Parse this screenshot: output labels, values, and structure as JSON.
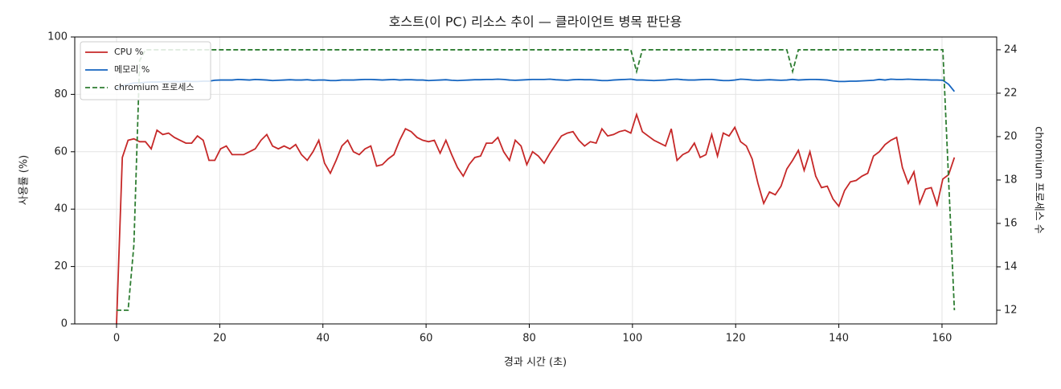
{
  "chart_data": {
    "type": "line",
    "title": "호스트(이 PC) 리소스 추이 — 클라이언트 병목 판단용",
    "xlabel": "경과 시간 (초)",
    "ylabel": "사용률 (%)",
    "y2label": "chromium 프로세스 수",
    "x": [
      0,
      1.12,
      2.24,
      3.36,
      4.48,
      5.6,
      6.72,
      7.84,
      8.96,
      10.08,
      11.2,
      12.32,
      13.44,
      14.56,
      15.68,
      16.8,
      17.92,
      19.04,
      20.16,
      21.28,
      22.4,
      23.52,
      24.64,
      25.76,
      26.88,
      28,
      29.12,
      30.24,
      31.36,
      32.48,
      33.6,
      34.72,
      35.84,
      36.96,
      38.08,
      39.2,
      40.32,
      41.44,
      42.56,
      43.68,
      44.8,
      45.92,
      47.04,
      48.16,
      49.28,
      50.4,
      51.52,
      52.64,
      53.76,
      54.88,
      56,
      57.12,
      58.24,
      59.36,
      60.48,
      61.6,
      62.72,
      63.84,
      64.96,
      66.08,
      67.2,
      68.32,
      69.44,
      70.56,
      71.68,
      72.8,
      73.92,
      75.04,
      76.16,
      77.28,
      78.4,
      79.52,
      80.64,
      81.76,
      82.88,
      84,
      85.12,
      86.24,
      87.36,
      88.48,
      89.6,
      90.72,
      91.84,
      92.96,
      94.08,
      95.2,
      96.32,
      97.44,
      98.56,
      99.68,
      100.8,
      101.92,
      103.04,
      104.16,
      105.28,
      106.4,
      107.52,
      108.64,
      109.76,
      110.88,
      112,
      113.12,
      114.24,
      115.36,
      116.48,
      117.6,
      118.72,
      119.84,
      120.96,
      122.08,
      123.2,
      124.32,
      125.44,
      126.56,
      127.68,
      128.8,
      129.92,
      131.04,
      132.16,
      133.28,
      134.4,
      135.52,
      136.64,
      137.76,
      138.88,
      140,
      141.12,
      142.24,
      143.36,
      144.48,
      145.6,
      146.72,
      147.84,
      148.96,
      150.08,
      151.2,
      152.32,
      153.44,
      154.56,
      155.68,
      156.8,
      157.92,
      159.04,
      160.16,
      161.28,
      162.4
    ],
    "series": [
      {
        "name": "CPU %",
        "color": "#c62828",
        "linestyle": "solid",
        "values": [
          0,
          58,
          64,
          64.5,
          63.5,
          63.5,
          61,
          67.5,
          66,
          66.5,
          65,
          64,
          63,
          63,
          65.5,
          64,
          57,
          57,
          61,
          62,
          59,
          59,
          59,
          60,
          61,
          64,
          66,
          62,
          61,
          62,
          61,
          62.5,
          59,
          57,
          60,
          64,
          56,
          52.5,
          57,
          62,
          64,
          60,
          59,
          61,
          62,
          55,
          55.5,
          57.5,
          59,
          64,
          68,
          67,
          65,
          64,
          63.5,
          64,
          59.5,
          64,
          59,
          54.5,
          51.5,
          55.5,
          58,
          58.5,
          63,
          63,
          65,
          60,
          57,
          64,
          62,
          55.5,
          60,
          58.5,
          56,
          59.5,
          62.5,
          65.5,
          66.5,
          67,
          64,
          62,
          63.5,
          63,
          68,
          65.5,
          66,
          67,
          67.5,
          66.5,
          73,
          67,
          65.5,
          64,
          63,
          62,
          68,
          57,
          59,
          60,
          63,
          58,
          59,
          66,
          58.5,
          66.5,
          65.5,
          68.5,
          63.5,
          62,
          57.5,
          49,
          42,
          46,
          45,
          48,
          54,
          57,
          60.5,
          53.5,
          60,
          51.5,
          47.5,
          48,
          43.5,
          41,
          46.5,
          49.5,
          50,
          51.5,
          52.5,
          58.5,
          60,
          62.5,
          64,
          65,
          54.5,
          49,
          53,
          42,
          47,
          47.5,
          41.5,
          50.5,
          52,
          58
        ]
      },
      {
        "name": "메모리 %",
        "color": "#1565c0",
        "linestyle": "solid",
        "values": [
          82,
          83,
          83.5,
          84,
          84,
          84.2,
          84.3,
          84.3,
          84.4,
          84.4,
          84.5,
          84.4,
          84.6,
          84.5,
          84.5,
          84.6,
          84.6,
          84.9,
          85,
          85,
          85,
          85.2,
          85.1,
          85,
          85.2,
          85.1,
          85,
          84.8,
          84.9,
          85,
          85.1,
          85,
          85,
          85.1,
          84.9,
          85,
          85,
          84.8,
          84.8,
          85,
          85,
          85,
          85.1,
          85.2,
          85.2,
          85.1,
          85,
          85.1,
          85.2,
          85,
          85.1,
          85.1,
          85,
          85,
          84.8,
          84.9,
          85,
          85.1,
          84.9,
          84.8,
          84.9,
          85,
          85.1,
          85.1,
          85.2,
          85.2,
          85.3,
          85.2,
          85,
          84.9,
          85,
          85.1,
          85.2,
          85.2,
          85.2,
          85.3,
          85.1,
          85,
          84.9,
          85.1,
          85.2,
          85.1,
          85.1,
          85,
          84.8,
          84.8,
          85,
          85.1,
          85.2,
          85.3,
          85,
          85,
          84.9,
          84.8,
          84.9,
          85,
          85.2,
          85.3,
          85.1,
          85,
          85,
          85.1,
          85.2,
          85.2,
          85,
          84.8,
          84.8,
          85,
          85.3,
          85.2,
          85,
          84.9,
          85,
          85.1,
          85,
          84.9,
          85,
          85.2,
          85,
          85.1,
          85.2,
          85.2,
          85.1,
          85,
          84.7,
          84.5,
          84.5,
          84.6,
          84.6,
          84.7,
          84.8,
          84.9,
          85.2,
          85,
          85.3,
          85.2,
          85.2,
          85.3,
          85.2,
          85.1,
          85.1,
          85,
          85,
          84.9,
          83.5,
          81
        ]
      },
      {
        "name": "chromium 프로세스",
        "color": "#2e7d32",
        "linestyle": "dashed",
        "axis": "y2",
        "values": [
          12,
          12,
          12,
          15,
          23.5,
          24,
          24,
          24,
          24,
          24,
          24,
          24,
          24,
          24,
          24,
          24,
          24,
          24,
          24,
          24,
          24,
          24,
          24,
          24,
          24,
          24,
          24,
          24,
          24,
          24,
          24,
          24,
          24,
          24,
          24,
          24,
          24,
          24,
          24,
          24,
          24,
          24,
          24,
          24,
          24,
          24,
          24,
          24,
          24,
          24,
          24,
          24,
          24,
          24,
          24,
          24,
          24,
          24,
          24,
          24,
          24,
          24,
          24,
          24,
          24,
          24,
          24,
          24,
          24,
          24,
          24,
          24,
          24,
          24,
          24,
          24,
          24,
          24,
          24,
          24,
          24,
          24,
          24,
          24,
          24,
          24,
          24,
          24,
          24,
          24,
          23,
          24,
          24,
          24,
          24,
          24,
          24,
          24,
          24,
          24,
          24,
          24,
          24,
          24,
          24,
          24,
          24,
          24,
          24,
          24,
          24,
          24,
          24,
          24,
          24,
          24,
          24,
          23,
          24,
          24,
          24,
          24,
          24,
          24,
          24,
          24,
          24,
          24,
          24,
          24,
          24,
          24,
          24,
          24,
          24,
          24,
          24,
          24,
          24,
          24,
          24,
          24,
          24,
          24,
          18,
          12
        ]
      }
    ],
    "xlim": [
      -8.1,
      170.6
    ],
    "xticks": [
      0,
      20,
      40,
      60,
      80,
      100,
      120,
      140,
      160
    ],
    "ylim": [
      0,
      100
    ],
    "yticks": [
      0,
      20,
      40,
      60,
      80,
      100
    ],
    "y2lim": [
      11.37,
      24.59
    ],
    "y2ticks": [
      12,
      14,
      16,
      18,
      20,
      22,
      24
    ],
    "grid": true,
    "legend": "upper-left"
  }
}
